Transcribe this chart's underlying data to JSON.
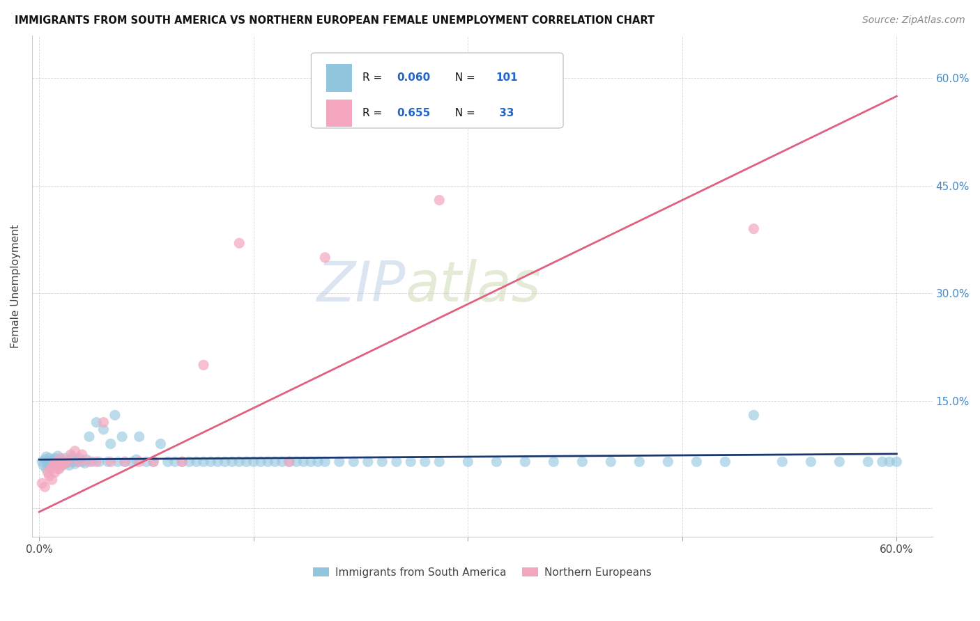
{
  "title": "IMMIGRANTS FROM SOUTH AMERICA VS NORTHERN EUROPEAN FEMALE UNEMPLOYMENT CORRELATION CHART",
  "source": "Source: ZipAtlas.com",
  "ylabel": "Female Unemployment",
  "color_blue": "#92c5de",
  "color_pink": "#f4a6be",
  "line_color_blue": "#1a3870",
  "line_color_pink": "#e06080",
  "watermark_zip": "ZIP",
  "watermark_atlas": "atlas",
  "ytick_vals": [
    0.0,
    0.15,
    0.3,
    0.45,
    0.6
  ],
  "ytick_labels": [
    "",
    "15.0%",
    "30.0%",
    "45.0%",
    "60.0%"
  ],
  "xtick_vals": [
    0.0,
    0.15,
    0.3,
    0.45,
    0.6
  ],
  "xtick_labels": [
    "0.0%",
    "",
    "",
    "",
    "60.0%"
  ],
  "blue_x": [
    0.002,
    0.003,
    0.004,
    0.005,
    0.005,
    0.006,
    0.007,
    0.007,
    0.008,
    0.009,
    0.01,
    0.01,
    0.011,
    0.012,
    0.013,
    0.013,
    0.014,
    0.015,
    0.015,
    0.016,
    0.017,
    0.018,
    0.019,
    0.02,
    0.021,
    0.022,
    0.023,
    0.024,
    0.025,
    0.026,
    0.027,
    0.028,
    0.03,
    0.032,
    0.033,
    0.035,
    0.037,
    0.04,
    0.042,
    0.045,
    0.048,
    0.05,
    0.053,
    0.055,
    0.058,
    0.06,
    0.065,
    0.068,
    0.07,
    0.075,
    0.08,
    0.085,
    0.09,
    0.095,
    0.1,
    0.105,
    0.11,
    0.115,
    0.12,
    0.125,
    0.13,
    0.135,
    0.14,
    0.145,
    0.15,
    0.155,
    0.16,
    0.165,
    0.17,
    0.175,
    0.18,
    0.185,
    0.19,
    0.195,
    0.2,
    0.21,
    0.22,
    0.23,
    0.24,
    0.25,
    0.26,
    0.27,
    0.28,
    0.3,
    0.32,
    0.34,
    0.36,
    0.38,
    0.4,
    0.42,
    0.44,
    0.46,
    0.48,
    0.5,
    0.52,
    0.54,
    0.56,
    0.58,
    0.59,
    0.595,
    0.6
  ],
  "blue_y": [
    0.065,
    0.06,
    0.068,
    0.055,
    0.072,
    0.063,
    0.058,
    0.07,
    0.065,
    0.06,
    0.068,
    0.062,
    0.07,
    0.065,
    0.06,
    0.073,
    0.065,
    0.062,
    0.068,
    0.06,
    0.065,
    0.07,
    0.063,
    0.065,
    0.06,
    0.068,
    0.072,
    0.065,
    0.062,
    0.068,
    0.065,
    0.07,
    0.065,
    0.063,
    0.068,
    0.1,
    0.065,
    0.12,
    0.065,
    0.11,
    0.065,
    0.09,
    0.13,
    0.065,
    0.1,
    0.065,
    0.065,
    0.068,
    0.1,
    0.065,
    0.065,
    0.09,
    0.065,
    0.065,
    0.065,
    0.065,
    0.065,
    0.065,
    0.065,
    0.065,
    0.065,
    0.065,
    0.065,
    0.065,
    0.065,
    0.065,
    0.065,
    0.065,
    0.065,
    0.065,
    0.065,
    0.065,
    0.065,
    0.065,
    0.065,
    0.065,
    0.065,
    0.065,
    0.065,
    0.065,
    0.065,
    0.065,
    0.065,
    0.065,
    0.065,
    0.065,
    0.065,
    0.065,
    0.065,
    0.065,
    0.065,
    0.065,
    0.065,
    0.13,
    0.065,
    0.065,
    0.065,
    0.065,
    0.065,
    0.065,
    0.065
  ],
  "pink_x": [
    0.002,
    0.004,
    0.006,
    0.007,
    0.008,
    0.009,
    0.01,
    0.011,
    0.012,
    0.013,
    0.014,
    0.015,
    0.016,
    0.018,
    0.02,
    0.022,
    0.025,
    0.028,
    0.03,
    0.035,
    0.04,
    0.045,
    0.05,
    0.06,
    0.07,
    0.08,
    0.1,
    0.115,
    0.14,
    0.175,
    0.2,
    0.28,
    0.5
  ],
  "pink_y": [
    0.035,
    0.03,
    0.05,
    0.045,
    0.055,
    0.04,
    0.06,
    0.05,
    0.065,
    0.055,
    0.055,
    0.07,
    0.06,
    0.065,
    0.065,
    0.075,
    0.08,
    0.065,
    0.075,
    0.065,
    0.065,
    0.12,
    0.065,
    0.065,
    0.065,
    0.065,
    0.065,
    0.2,
    0.37,
    0.065,
    0.35,
    0.43,
    0.39
  ],
  "blue_line_x": [
    0.0,
    0.6
  ],
  "blue_line_y": [
    0.068,
    0.076
  ],
  "pink_line_x": [
    0.0,
    0.6
  ],
  "pink_line_y": [
    -0.005,
    0.575
  ]
}
